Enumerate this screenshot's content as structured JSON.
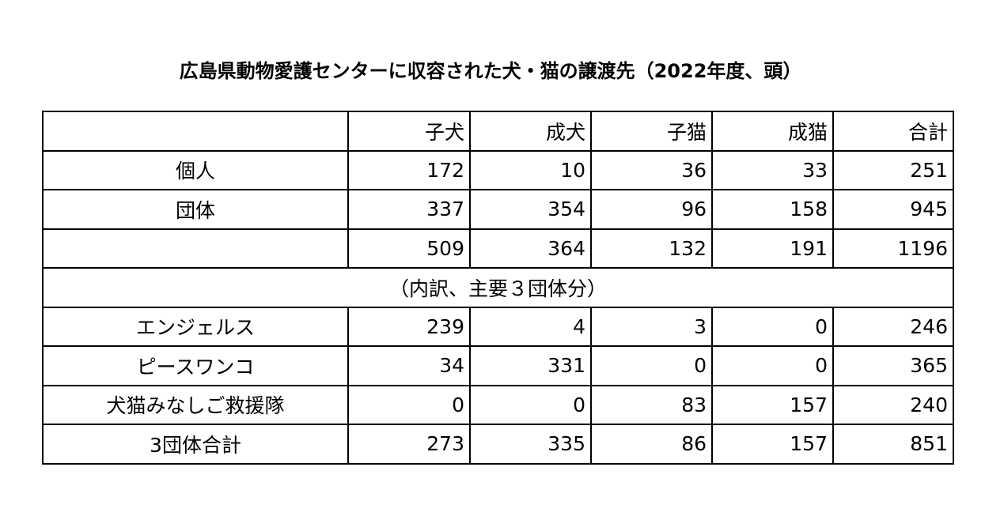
{
  "title": "広島県動物愛護センターに収容された犬・猫の譲渡先（2022年度、頭）",
  "table": {
    "columns": [
      "子犬",
      "成犬",
      "子猫",
      "成猫",
      "合計"
    ],
    "rows": [
      {
        "label": "個人",
        "values": [
          172,
          10,
          36,
          33,
          251
        ]
      },
      {
        "label": "団体",
        "values": [
          337,
          354,
          96,
          158,
          945
        ]
      },
      {
        "values": [
          509,
          364,
          132,
          191,
          1196
        ]
      }
    ],
    "note": "（内訳、主要３団体分）",
    "breakdown": [
      {
        "label": "エンジェルス",
        "values": [
          239,
          4,
          3,
          0,
          246
        ]
      },
      {
        "label": "ピースワンコ",
        "values": [
          34,
          331,
          0,
          0,
          365
        ]
      },
      {
        "label": "犬猫みなしご救援隊",
        "values": [
          0,
          0,
          83,
          157,
          240
        ]
      },
      {
        "label": "3団体合計",
        "values": [
          273,
          335,
          86,
          157,
          851
        ]
      }
    ]
  }
}
